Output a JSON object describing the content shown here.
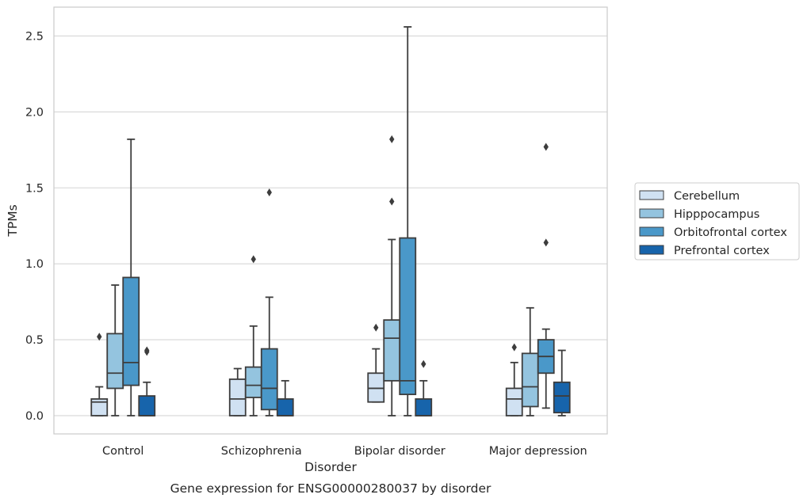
{
  "chart_data": {
    "type": "box",
    "caption": "Gene expression for ENSG00000280037 by disorder",
    "xlabel": "Disorder",
    "ylabel": "TPMs",
    "ylim": [
      -0.12,
      2.69
    ],
    "yticks": [
      "0.0",
      "0.5",
      "1.0",
      "1.5",
      "2.0",
      "2.5"
    ],
    "grid": true,
    "legend_position": "right",
    "categories": [
      "Control",
      "Schizophrenia",
      "Bipolar disorder",
      "Major depression"
    ],
    "series": [
      {
        "name": "Cerebellum",
        "color": "#d0e1f2",
        "boxes": [
          {
            "whislo": 0.0,
            "q1": 0.0,
            "med": 0.09,
            "q3": 0.11,
            "whishi": 0.19,
            "fliers": [
              0.52
            ]
          },
          {
            "whislo": 0.0,
            "q1": 0.0,
            "med": 0.11,
            "q3": 0.24,
            "whishi": 0.31,
            "fliers": []
          },
          {
            "whislo": 0.09,
            "q1": 0.09,
            "med": 0.18,
            "q3": 0.28,
            "whishi": 0.44,
            "fliers": [
              0.58
            ]
          },
          {
            "whislo": 0.0,
            "q1": 0.0,
            "med": 0.11,
            "q3": 0.18,
            "whishi": 0.35,
            "fliers": [
              0.45
            ]
          }
        ]
      },
      {
        "name": "Hipppocampus",
        "color": "#94c4df",
        "boxes": [
          {
            "whislo": 0.0,
            "q1": 0.18,
            "med": 0.28,
            "q3": 0.54,
            "whishi": 0.86,
            "fliers": []
          },
          {
            "whislo": 0.0,
            "q1": 0.12,
            "med": 0.2,
            "q3": 0.32,
            "whishi": 0.59,
            "fliers": [
              1.03
            ]
          },
          {
            "whislo": 0.0,
            "q1": 0.23,
            "med": 0.51,
            "q3": 0.63,
            "whishi": 1.16,
            "fliers": [
              1.41,
              1.82
            ]
          },
          {
            "whislo": 0.0,
            "q1": 0.06,
            "med": 0.19,
            "q3": 0.41,
            "whishi": 0.71,
            "fliers": []
          }
        ]
      },
      {
        "name": "Orbitofrontal cortex",
        "color": "#4a98c9",
        "boxes": [
          {
            "whislo": 0.0,
            "q1": 0.2,
            "med": 0.35,
            "q3": 0.91,
            "whishi": 1.82,
            "fliers": []
          },
          {
            "whislo": 0.0,
            "q1": 0.04,
            "med": 0.18,
            "q3": 0.44,
            "whishi": 0.78,
            "fliers": [
              1.47
            ]
          },
          {
            "whislo": 0.0,
            "q1": 0.14,
            "med": 0.23,
            "q3": 1.17,
            "whishi": 2.56,
            "fliers": []
          },
          {
            "whislo": 0.05,
            "q1": 0.28,
            "med": 0.39,
            "q3": 0.5,
            "whishi": 0.57,
            "fliers": [
              1.14,
              1.77
            ]
          }
        ]
      },
      {
        "name": "Prefrontal cortex",
        "color": "#1764ab",
        "boxes": [
          {
            "whislo": 0.0,
            "q1": 0.0,
            "med": 0.0,
            "q3": 0.13,
            "whishi": 0.22,
            "fliers": [
              0.42,
              0.43
            ]
          },
          {
            "whislo": 0.0,
            "q1": 0.0,
            "med": 0.0,
            "q3": 0.11,
            "whishi": 0.23,
            "fliers": []
          },
          {
            "whislo": 0.0,
            "q1": 0.0,
            "med": 0.0,
            "q3": 0.11,
            "whishi": 0.23,
            "fliers": [
              0.34
            ]
          },
          {
            "whislo": 0.0,
            "q1": 0.02,
            "med": 0.13,
            "q3": 0.22,
            "whishi": 0.43,
            "fliers": []
          }
        ]
      }
    ]
  }
}
